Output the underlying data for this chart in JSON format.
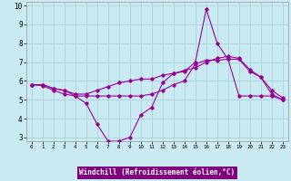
{
  "xlabel": "Windchill (Refroidissement éolien,°C)",
  "xlim": [
    -0.5,
    23.5
  ],
  "ylim": [
    2.8,
    10.2
  ],
  "yticks": [
    3,
    4,
    5,
    6,
    7,
    8,
    9,
    10
  ],
  "xticks": [
    0,
    1,
    2,
    3,
    4,
    5,
    6,
    7,
    8,
    9,
    10,
    11,
    12,
    13,
    14,
    15,
    16,
    17,
    18,
    19,
    20,
    21,
    22,
    23
  ],
  "bg_color": "#c8eaf0",
  "grid_color": "#aad4da",
  "line_color": "#990099",
  "xlabel_bg": "#800080",
  "xlabel_fg": "#ffffff",
  "lines": [
    {
      "x": [
        0,
        1,
        2,
        3,
        4,
        5,
        6,
        7,
        8,
        9,
        10,
        11,
        12,
        13,
        14,
        15,
        16,
        17,
        18,
        19,
        20,
        21,
        22,
        23
      ],
      "y": [
        5.8,
        5.8,
        5.6,
        5.5,
        5.2,
        4.8,
        3.7,
        2.8,
        2.8,
        3.0,
        4.2,
        4.6,
        5.9,
        6.4,
        6.5,
        7.0,
        9.8,
        8.0,
        7.15,
        7.15,
        6.5,
        6.2,
        5.3,
        5.0
      ]
    },
    {
      "x": [
        0,
        1,
        2,
        3,
        4,
        5,
        6,
        7,
        8,
        9,
        10,
        11,
        12,
        13,
        14,
        15,
        16,
        17,
        18,
        19,
        20,
        21,
        22,
        23
      ],
      "y": [
        5.8,
        5.75,
        5.5,
        5.3,
        5.2,
        5.2,
        5.2,
        5.2,
        5.2,
        5.2,
        5.2,
        5.3,
        5.5,
        5.8,
        6.0,
        6.9,
        7.1,
        7.1,
        7.15,
        5.2,
        5.2,
        5.2,
        5.2,
        5.0
      ]
    },
    {
      "x": [
        0,
        1,
        2,
        3,
        4,
        5,
        6,
        7,
        8,
        9,
        10,
        11,
        12,
        13,
        14,
        15,
        16,
        17,
        18,
        19,
        20,
        21,
        22,
        23
      ],
      "y": [
        5.8,
        5.8,
        5.6,
        5.5,
        5.3,
        5.3,
        5.5,
        5.7,
        5.9,
        6.0,
        6.1,
        6.1,
        6.3,
        6.4,
        6.55,
        6.7,
        7.0,
        7.2,
        7.3,
        7.2,
        6.6,
        6.2,
        5.5,
        5.1
      ]
    }
  ]
}
